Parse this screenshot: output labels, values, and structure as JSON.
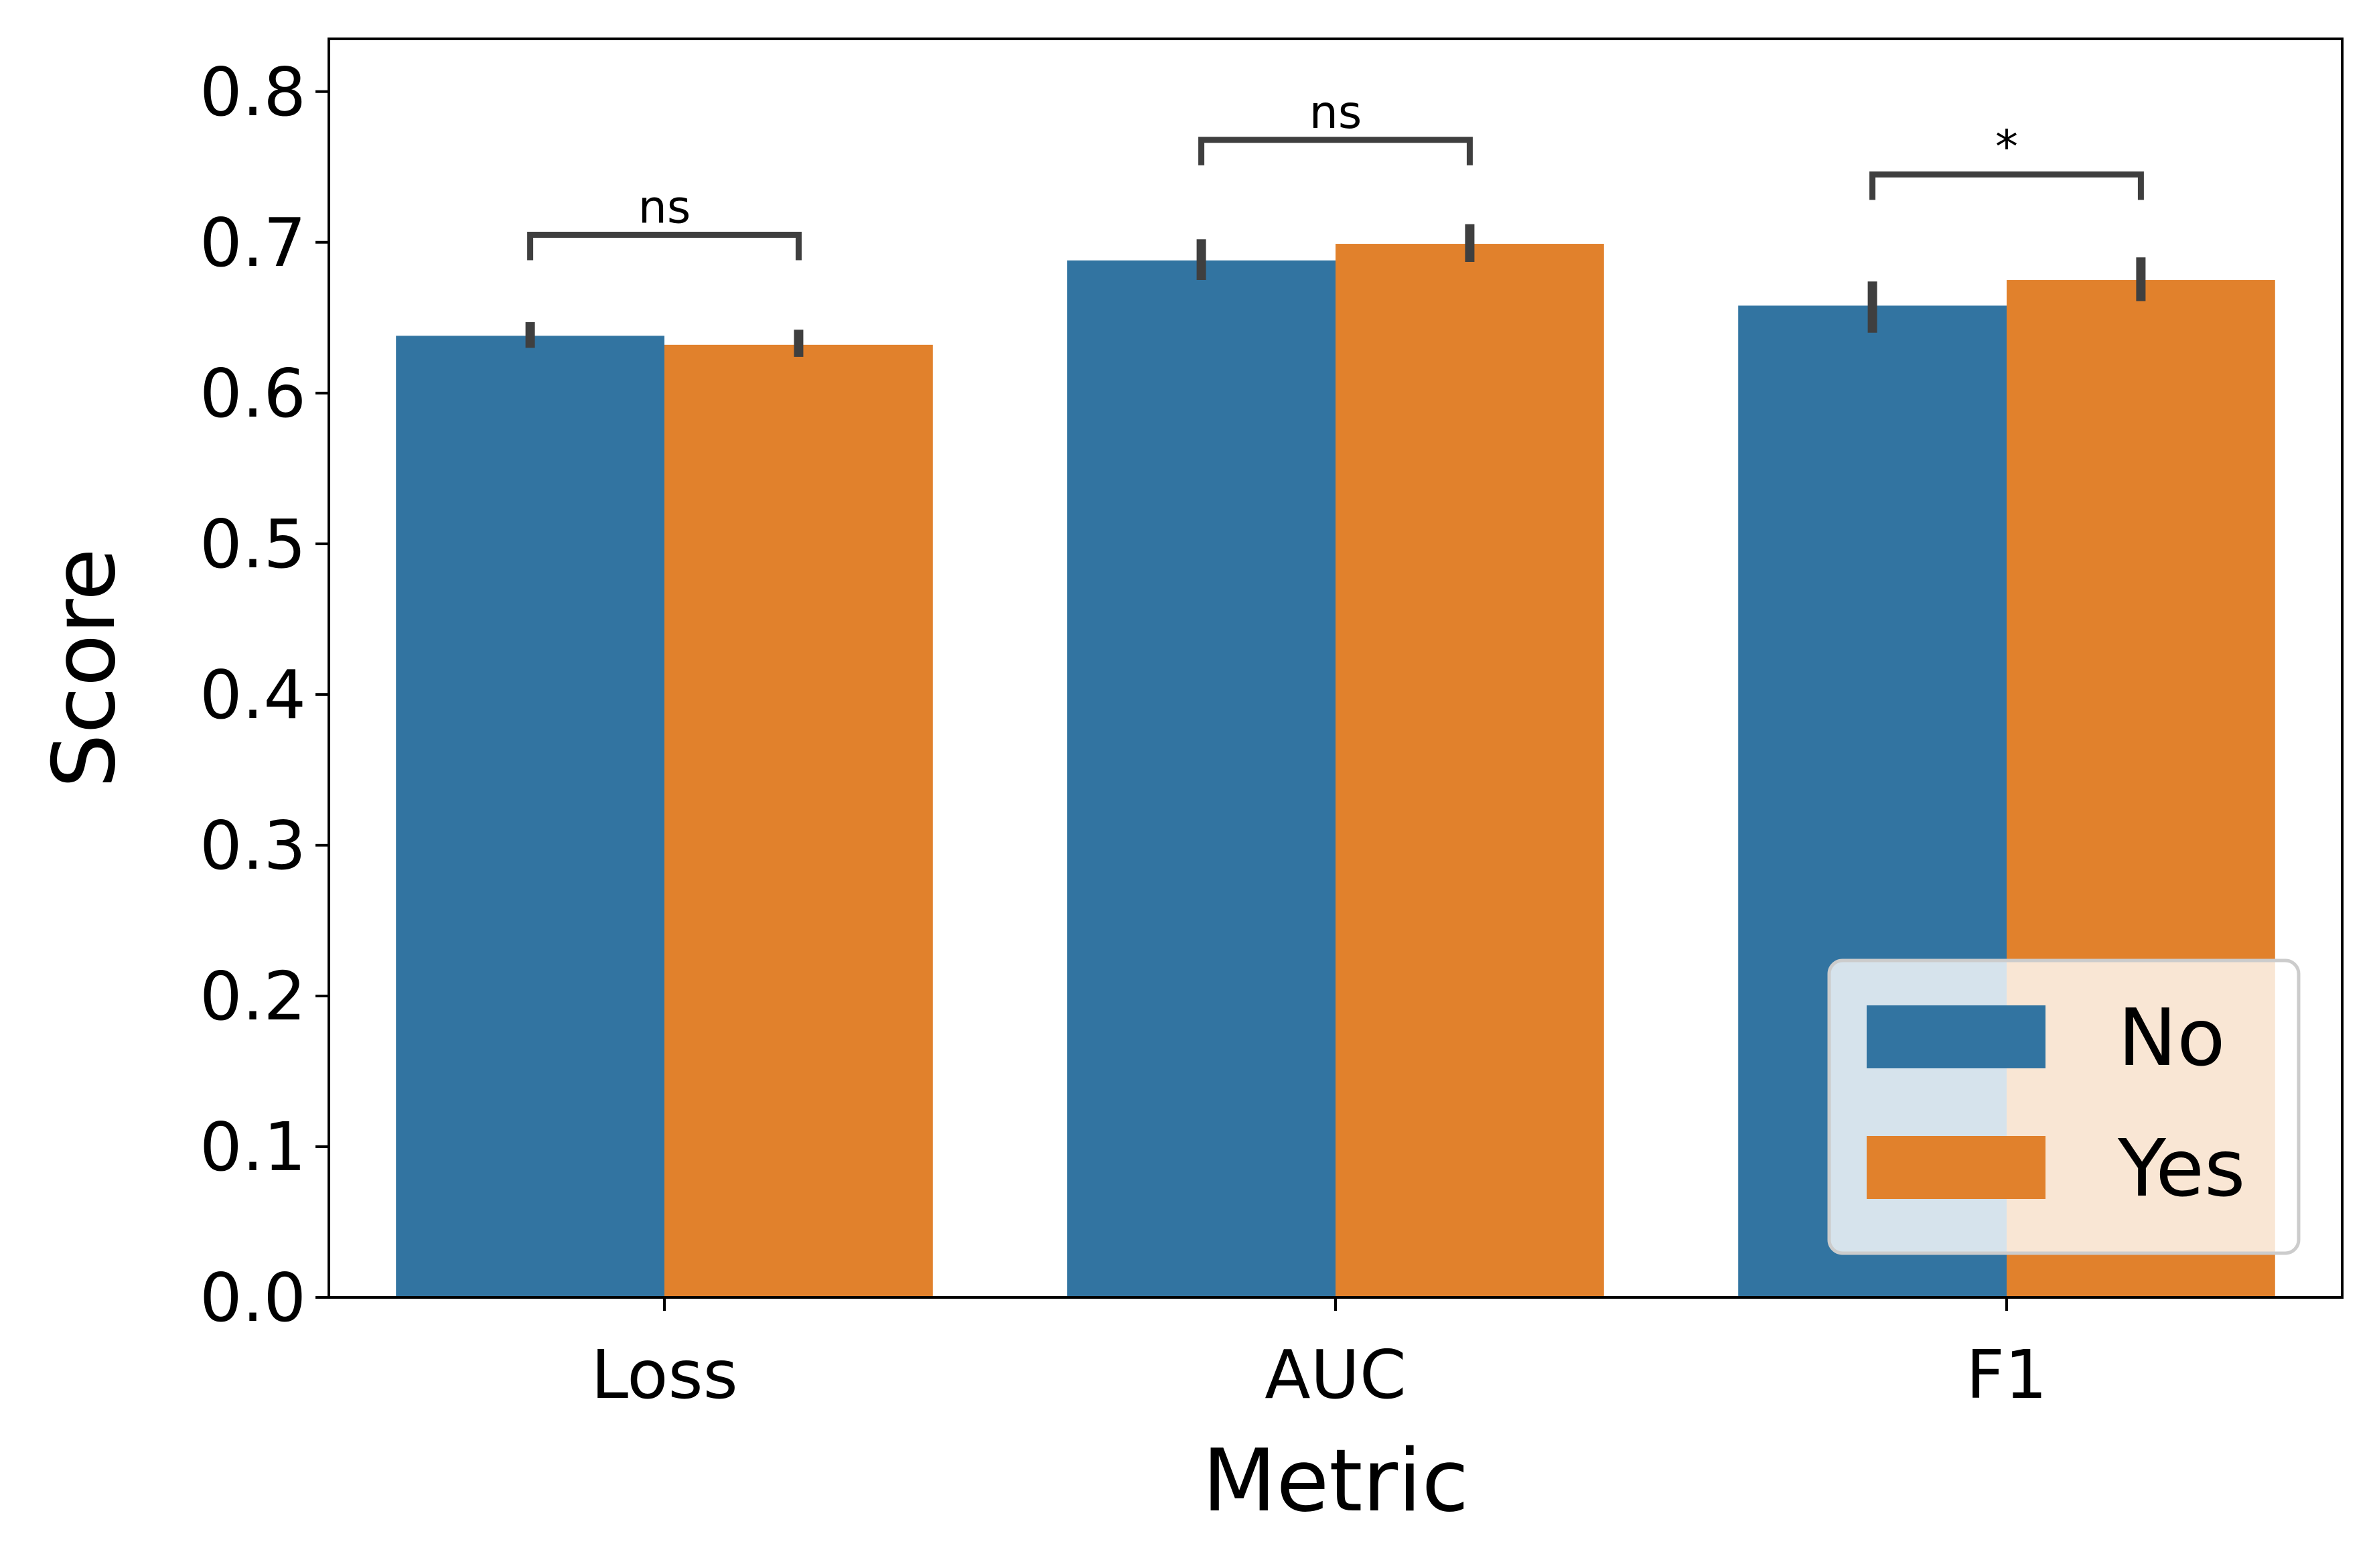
{
  "chart_data": {
    "type": "bar",
    "xlabel": "Metric",
    "ylabel": "Score",
    "categories": [
      "Loss",
      "AUC",
      "F1"
    ],
    "ylim": [
      0,
      0.835
    ],
    "yticks": [
      0.0,
      0.1,
      0.2,
      0.3,
      0.4,
      0.5,
      0.6,
      0.7,
      0.8
    ],
    "ytick_labels": [
      "0.0",
      "0.1",
      "0.2",
      "0.3",
      "0.4",
      "0.5",
      "0.6",
      "0.7",
      "0.8"
    ],
    "series": [
      {
        "name": "No",
        "color": "#3274a1",
        "values": [
          0.638,
          0.688,
          0.658
        ],
        "err_low": [
          0.63,
          0.675,
          0.64
        ],
        "err_high": [
          0.647,
          0.702,
          0.674
        ]
      },
      {
        "name": "Yes",
        "color": "#e1812c",
        "values": [
          0.632,
          0.699,
          0.675
        ],
        "err_low": [
          0.624,
          0.687,
          0.661
        ],
        "err_high": [
          0.642,
          0.712,
          0.69
        ]
      }
    ],
    "significance": [
      {
        "category": "Loss",
        "label": "ns",
        "level": 0.705
      },
      {
        "category": "AUC",
        "label": "ns",
        "level": 0.768
      },
      {
        "category": "F1",
        "label": "*",
        "level": 0.745
      }
    ],
    "legend_position": "lower-right",
    "grid": false
  }
}
